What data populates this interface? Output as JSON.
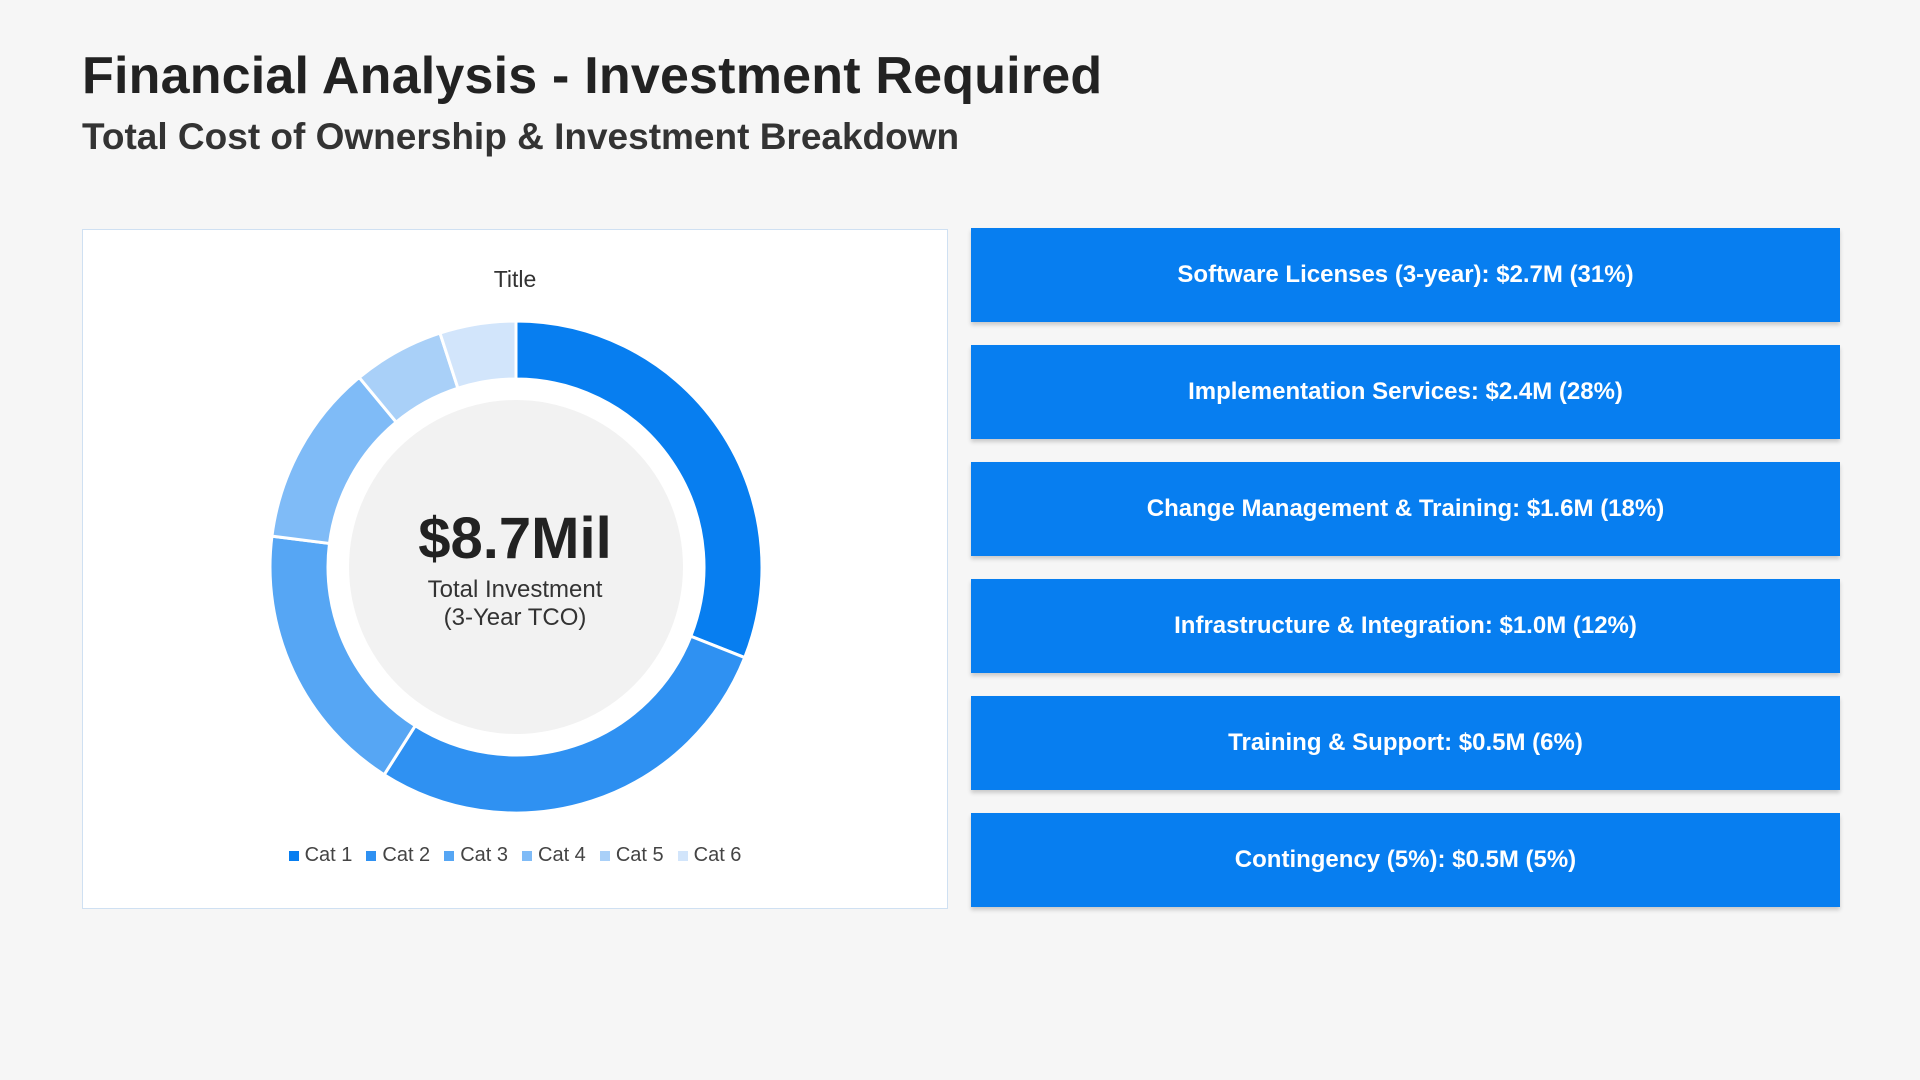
{
  "header": {
    "title": "Financial Analysis - Investment Required",
    "subtitle": "Total Cost of Ownership & Investment Breakdown"
  },
  "chart_data": {
    "type": "pie",
    "title": "Title",
    "donut": true,
    "center_value": "$8.7Mil",
    "center_label_line1": "Total Investment",
    "center_label_line2": "(3-Year TCO)",
    "categories": [
      "Cat 1",
      "Cat 2",
      "Cat 3",
      "Cat 4",
      "Cat 5",
      "Cat 6"
    ],
    "values": [
      31,
      28,
      18,
      12,
      6,
      5
    ],
    "colors": [
      "#077ef0",
      "#2f91f2",
      "#56a6f4",
      "#7fbbf7",
      "#a9d0f8",
      "#d2e5fb"
    ],
    "legend_position": "bottom"
  },
  "breakdown": [
    {
      "label": "Software Licenses (3-year): $2.7M (31%)"
    },
    {
      "label": "Implementation Services: $2.4M (28%)"
    },
    {
      "label": "Change Management & Training: $1.6M (18%)"
    },
    {
      "label": "Infrastructure & Integration: $1.0M (12%)"
    },
    {
      "label": "Training & Support: $0.5M (6%)"
    },
    {
      "label": "Contingency (5%): $0.5M (5%)"
    }
  ]
}
